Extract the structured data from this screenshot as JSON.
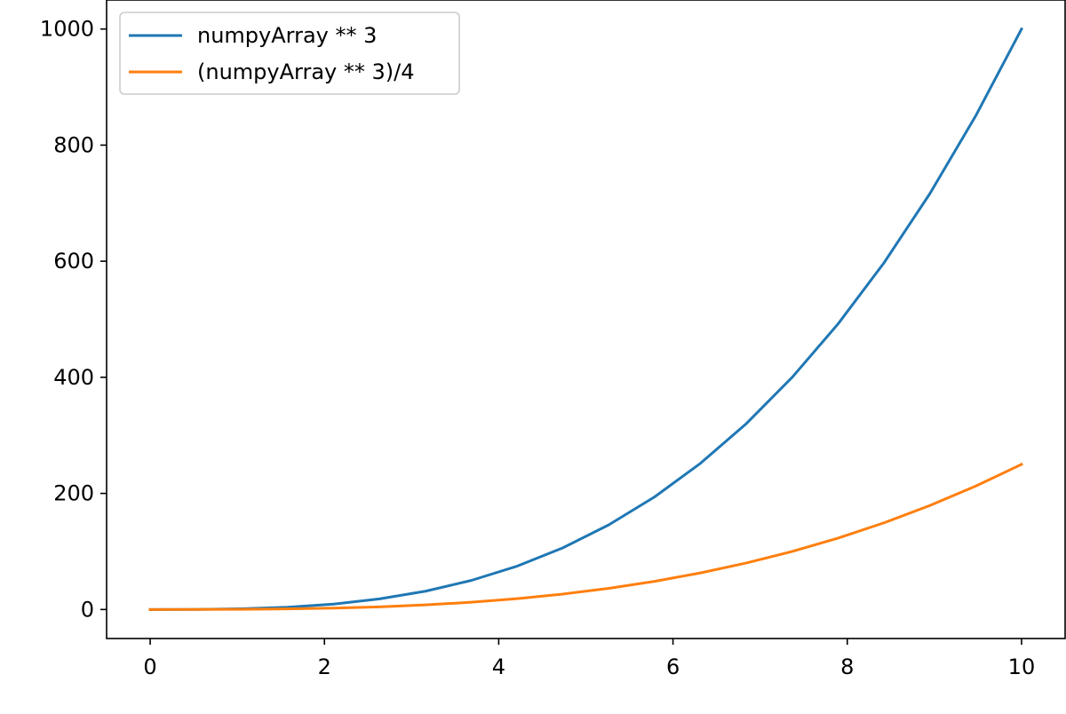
{
  "chart_data": {
    "type": "line",
    "title": "",
    "xlabel": "",
    "ylabel": "",
    "xlim": [
      -0.5,
      10.5
    ],
    "ylim": [
      -50,
      1050
    ],
    "xticks": [
      0,
      2,
      4,
      6,
      8,
      10
    ],
    "yticks": [
      0,
      200,
      400,
      600,
      800,
      1000
    ],
    "xtick_labels": [
      "0",
      "2",
      "4",
      "6",
      "8",
      "10"
    ],
    "ytick_labels": [
      "0",
      "200",
      "400",
      "600",
      "800",
      "1000"
    ],
    "grid": false,
    "legend_position": "top-left",
    "x": [
      0,
      0.5263,
      1.0526,
      1.5789,
      2.1053,
      2.6316,
      3.1579,
      3.6842,
      4.2105,
      4.7368,
      5.2632,
      5.7895,
      6.3158,
      6.8421,
      7.3684,
      7.8947,
      8.4211,
      8.9474,
      9.4737,
      10
    ],
    "series": [
      {
        "name": "numpyArray ** 3",
        "color": "#1f77b4",
        "values": [
          0,
          0.15,
          1.17,
          3.94,
          9.33,
          18.22,
          31.49,
          50.01,
          74.64,
          106.28,
          145.79,
          194.05,
          251.93,
          320.31,
          400.06,
          492.05,
          597.17,
          716.29,
          850.27,
          1000
        ]
      },
      {
        "name": "(numpyArray ** 3)/4",
        "color": "#ff7f0e",
        "values": [
          0,
          0.04,
          0.29,
          0.98,
          2.33,
          4.56,
          7.87,
          12.5,
          18.66,
          26.57,
          36.45,
          48.51,
          62.98,
          80.08,
          100.02,
          123.01,
          149.29,
          179.07,
          212.57,
          250
        ]
      }
    ]
  }
}
